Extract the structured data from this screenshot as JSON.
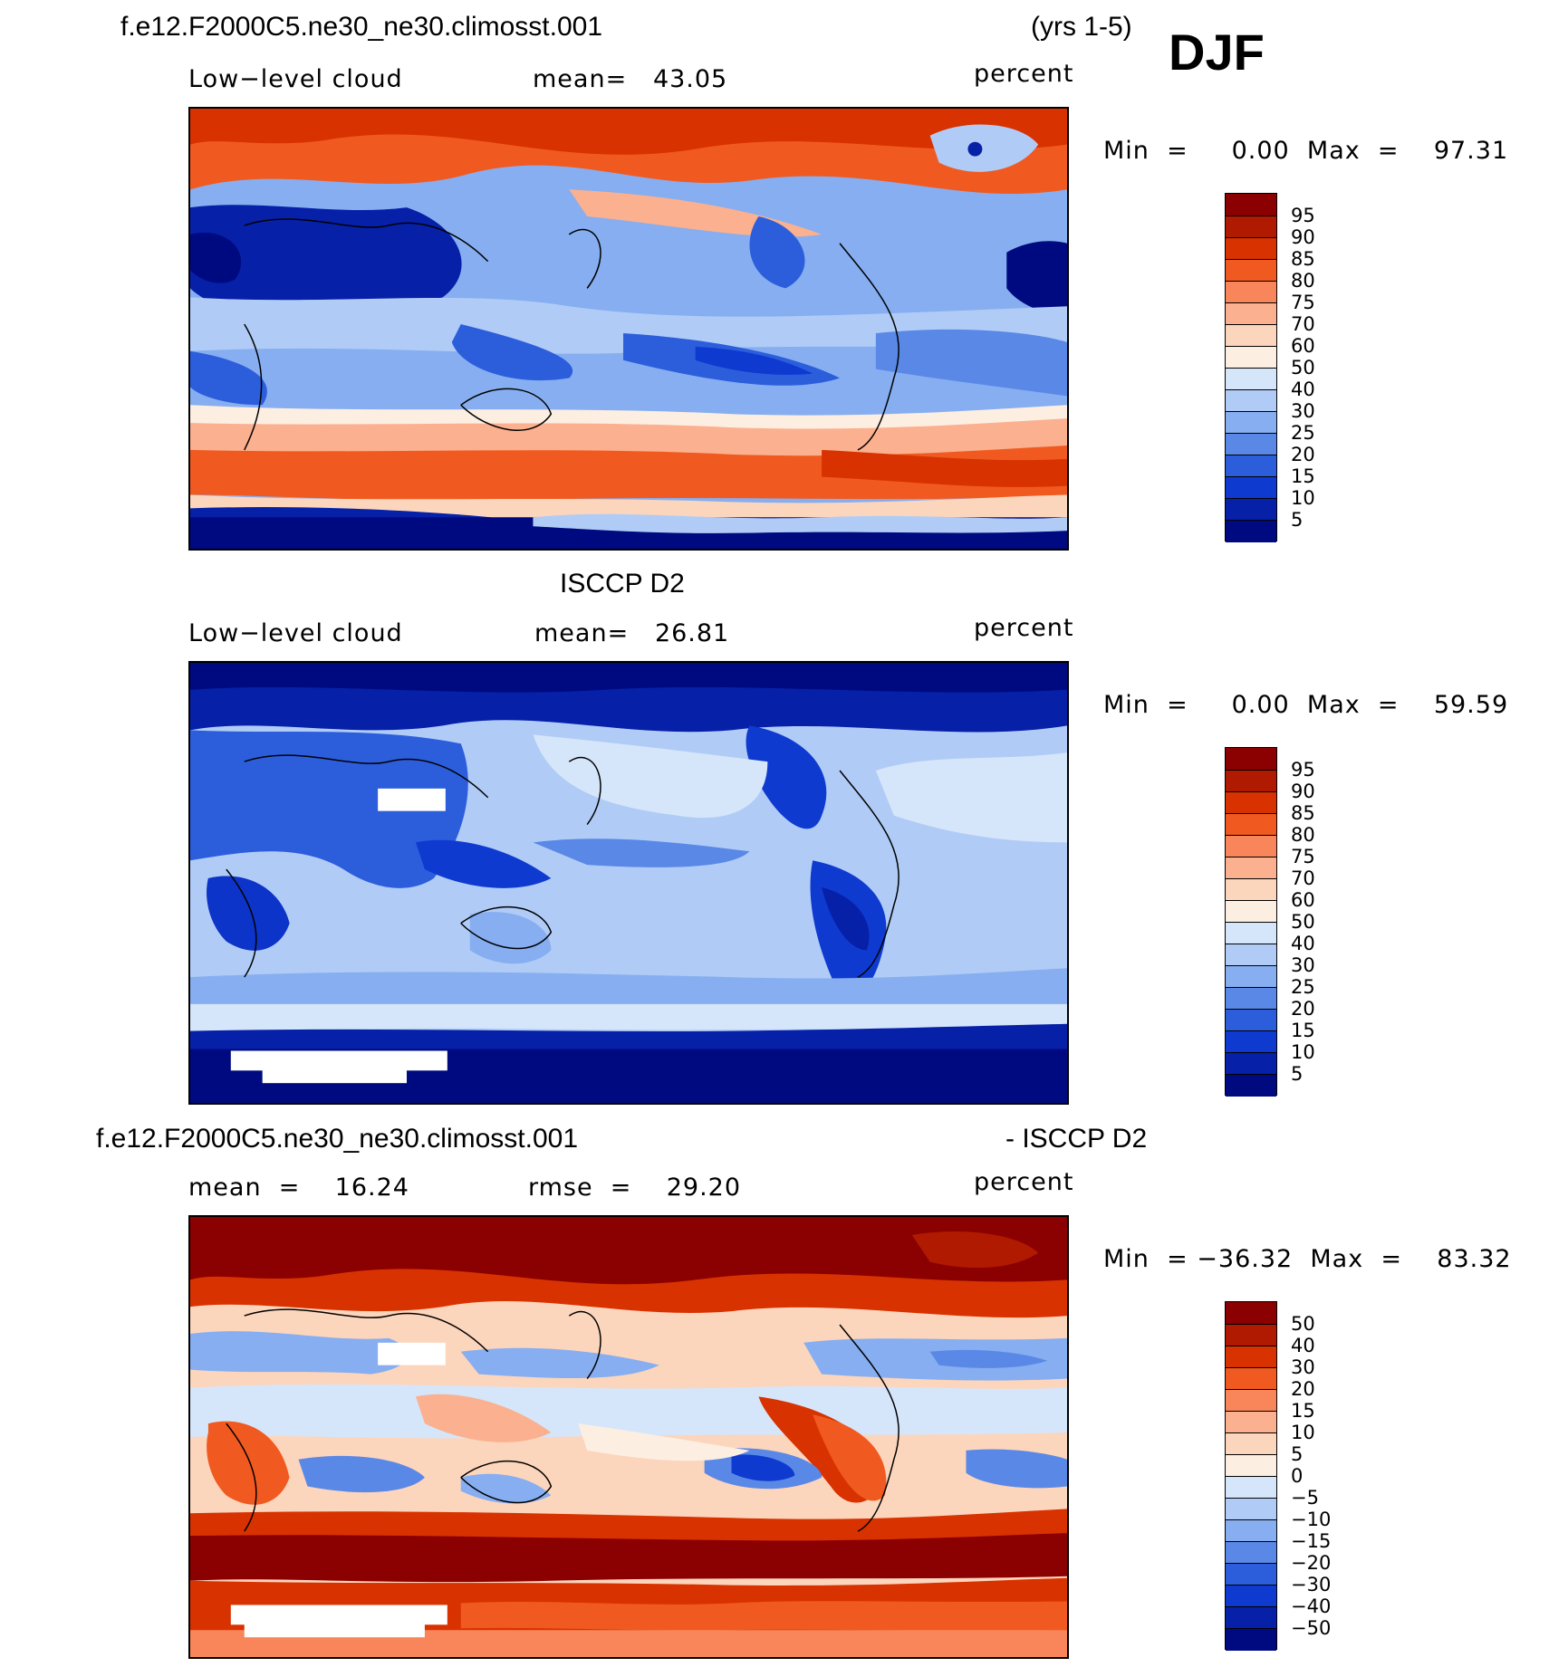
{
  "header": {
    "case_name": "f.e12.F2000C5.ne30_ne30.climosst.001",
    "years": "(yrs 1-5)",
    "season": "DJF"
  },
  "panels": [
    {
      "id": "model",
      "title": "",
      "left_label": "Low−level cloud",
      "center_label": "mean=   43.05",
      "units": "percent",
      "minmax": "Min  =     0.00  Max  =    97.31",
      "colorbar_labels": [
        "95",
        "90",
        "85",
        "80",
        "75",
        "70",
        "60",
        "50",
        "40",
        "30",
        "25",
        "20",
        "15",
        "10",
        "5"
      ]
    },
    {
      "id": "obs",
      "title": "ISCCP D2",
      "left_label": "Low−level cloud",
      "center_label": "mean=   26.81",
      "units": "percent",
      "minmax": "Min  =     0.00  Max  =    59.59",
      "colorbar_labels": [
        "95",
        "90",
        "85",
        "80",
        "75",
        "70",
        "60",
        "50",
        "40",
        "30",
        "25",
        "20",
        "15",
        "10",
        "5"
      ]
    },
    {
      "id": "diff",
      "title_left": "f.e12.F2000C5.ne30_ne30.climosst.001",
      "title_right": "- ISCCP D2",
      "left_label": "mean  =    16.24",
      "center_label": "rmse  =    29.20",
      "units": "percent",
      "minmax": "Min  = −36.32  Max  =    83.32",
      "colorbar_labels": [
        "50",
        "40",
        "30",
        "20",
        "15",
        "10",
        "5",
        "0",
        "−5",
        "−10",
        "−15",
        "−20",
        "−30",
        "−40",
        "−50"
      ]
    }
  ],
  "palette": [
    "#8b0000",
    "#b01a00",
    "#d83200",
    "#f05a20",
    "#f8865a",
    "#fbb08f",
    "#fcd5bd",
    "#fdeee2",
    "#d6e6fa",
    "#b0ccf6",
    "#86aef0",
    "#5a88e6",
    "#2c5edc",
    "#0e3ad0",
    "#0620a8",
    "#000a80"
  ],
  "palette_note_colors": {
    "ocean_white_gap": "#ffffff"
  }
}
